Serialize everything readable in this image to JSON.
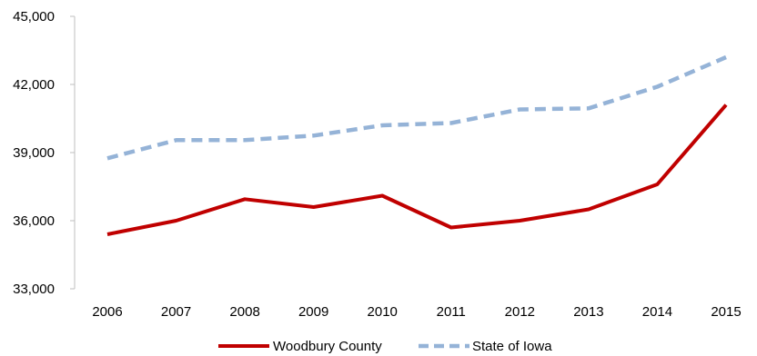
{
  "chart_data": {
    "type": "line",
    "title": "",
    "xlabel": "",
    "ylabel": "",
    "categories": [
      "2006",
      "2007",
      "2008",
      "2009",
      "2010",
      "2011",
      "2012",
      "2013",
      "2014",
      "2015"
    ],
    "y_ticks": [
      "33,000",
      "36,000",
      "39,000",
      "42,000",
      "45,000"
    ],
    "ylim": [
      33000,
      45000
    ],
    "grid": false,
    "legend_position": "bottom",
    "series": [
      {
        "name": "Woodbury County",
        "color": "#C00000",
        "style": "solid",
        "values": [
          35400,
          36000,
          36950,
          36600,
          37100,
          35700,
          36000,
          36500,
          37600,
          41100
        ]
      },
      {
        "name": "State of Iowa",
        "color": "#95B3D7",
        "style": "dashed",
        "values": [
          38750,
          39550,
          39550,
          39750,
          40200,
          40300,
          40900,
          40950,
          41900,
          43200
        ]
      }
    ]
  }
}
